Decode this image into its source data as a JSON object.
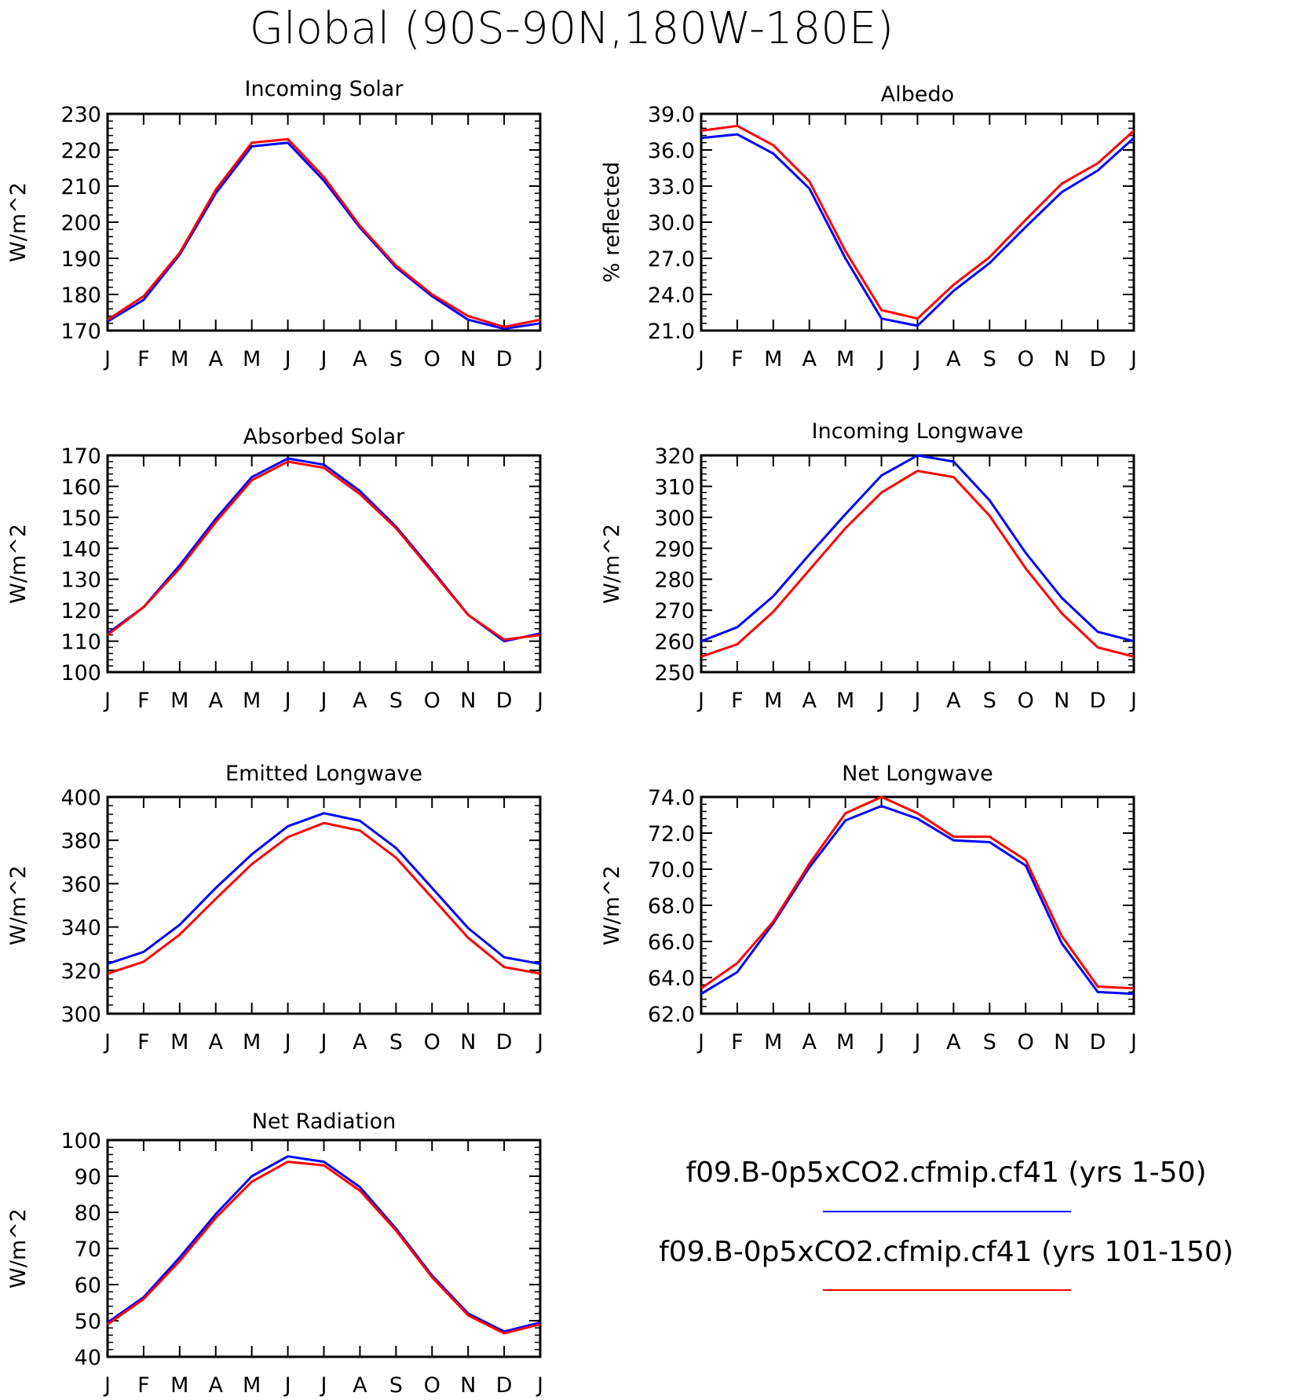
{
  "figure": {
    "title": "Global (90S-90N,180W-180E)"
  },
  "legend": [
    {
      "label": "f09.B-0p5xCO2.cfmip.cf41 (yrs 1-50)",
      "color": "#0000ff"
    },
    {
      "label": "f09.B-0p5xCO2.cfmip.cf41 (yrs 101-150)",
      "color": "#ff0000"
    }
  ],
  "colors": {
    "series_1": "#0000ff",
    "series_2": "#ff0000",
    "axes": "#000000",
    "background": "#ffffff"
  },
  "chart_data": [
    {
      "type": "line",
      "title": "Incoming Solar",
      "ylabel": "W/m^2",
      "categories": [
        "J",
        "F",
        "M",
        "A",
        "M",
        "J",
        "J",
        "A",
        "S",
        "O",
        "N",
        "D",
        "J"
      ],
      "ylim": [
        170,
        230
      ],
      "yticks": [
        "170",
        "180",
        "190",
        "200",
        "210",
        "220",
        "230"
      ],
      "series": [
        {
          "values": [
            172.5,
            178.5,
            191.0,
            208.0,
            221.0,
            222.0,
            211.5,
            198.5,
            187.5,
            179.5,
            173.0,
            170.5,
            172.0
          ]
        },
        {
          "values": [
            173.0,
            179.5,
            191.5,
            209.0,
            222.0,
            223.0,
            212.5,
            199.0,
            188.0,
            180.0,
            174.0,
            171.0,
            173.0
          ]
        }
      ]
    },
    {
      "type": "line",
      "title": "Albedo",
      "ylabel": "% reflected",
      "categories": [
        "J",
        "F",
        "M",
        "A",
        "M",
        "J",
        "J",
        "A",
        "S",
        "O",
        "N",
        "D",
        "J"
      ],
      "ylim": [
        21.0,
        39.0
      ],
      "yticks": [
        "21.0",
        "24.0",
        "27.0",
        "30.0",
        "33.0",
        "36.0",
        "39.0"
      ],
      "series": [
        {
          "values": [
            37.0,
            37.3,
            35.7,
            32.8,
            27.0,
            22.0,
            21.4,
            24.3,
            26.6,
            29.6,
            32.5,
            34.3,
            37.0
          ]
        },
        {
          "values": [
            37.6,
            38.0,
            36.4,
            33.4,
            27.6,
            22.7,
            22.0,
            24.8,
            27.1,
            30.2,
            33.2,
            34.9,
            37.6
          ]
        }
      ]
    },
    {
      "type": "line",
      "title": "Absorbed Solar",
      "ylabel": "W/m^2",
      "categories": [
        "J",
        "F",
        "M",
        "A",
        "M",
        "J",
        "J",
        "A",
        "S",
        "O",
        "N",
        "D",
        "J"
      ],
      "ylim": [
        100,
        170
      ],
      "yticks": [
        "100",
        "110",
        "120",
        "130",
        "140",
        "150",
        "160",
        "170"
      ],
      "series": [
        {
          "values": [
            112.5,
            121.0,
            134.5,
            149.5,
            163.0,
            169.0,
            167.0,
            158.5,
            147.0,
            133.0,
            118.5,
            110.0,
            112.5
          ]
        },
        {
          "values": [
            112.0,
            121.0,
            133.5,
            148.5,
            162.0,
            168.0,
            166.0,
            157.5,
            146.5,
            132.5,
            118.5,
            110.5,
            112.0
          ]
        }
      ]
    },
    {
      "type": "line",
      "title": "Incoming Longwave",
      "ylabel": "W/m^2",
      "categories": [
        "J",
        "F",
        "M",
        "A",
        "M",
        "J",
        "J",
        "A",
        "S",
        "O",
        "N",
        "D",
        "J"
      ],
      "ylim": [
        250,
        320
      ],
      "yticks": [
        "250",
        "260",
        "270",
        "280",
        "290",
        "300",
        "310",
        "320"
      ],
      "series": [
        {
          "values": [
            260.0,
            264.5,
            274.5,
            288.0,
            301.0,
            313.5,
            320.0,
            318.0,
            305.5,
            288.5,
            274.0,
            263.0,
            260.0
          ]
        },
        {
          "values": [
            255.0,
            259.0,
            269.5,
            283.0,
            296.5,
            308.0,
            315.0,
            313.0,
            300.5,
            283.5,
            269.0,
            258.0,
            255.0
          ]
        }
      ]
    },
    {
      "type": "line",
      "title": "Emitted Longwave",
      "ylabel": "W/m^2",
      "categories": [
        "J",
        "F",
        "M",
        "A",
        "M",
        "J",
        "J",
        "A",
        "S",
        "O",
        "N",
        "D",
        "J"
      ],
      "ylim": [
        300,
        400
      ],
      "yticks": [
        "300",
        "320",
        "340",
        "360",
        "380",
        "400"
      ],
      "series": [
        {
          "values": [
            323.0,
            328.5,
            341.0,
            358.0,
            373.5,
            386.5,
            392.5,
            389.0,
            376.5,
            358.0,
            339.5,
            326.0,
            323.0
          ]
        },
        {
          "values": [
            318.5,
            324.0,
            336.5,
            353.0,
            369.0,
            381.5,
            388.0,
            384.5,
            372.0,
            353.5,
            335.0,
            321.5,
            318.5
          ]
        }
      ]
    },
    {
      "type": "line",
      "title": "Net Longwave",
      "ylabel": "W/m^2",
      "categories": [
        "J",
        "F",
        "M",
        "A",
        "M",
        "J",
        "J",
        "A",
        "S",
        "O",
        "N",
        "D",
        "J"
      ],
      "ylim": [
        62.0,
        74.0
      ],
      "yticks": [
        "62.0",
        "64.0",
        "66.0",
        "68.0",
        "70.0",
        "72.0",
        "74.0"
      ],
      "series": [
        {
          "values": [
            63.1,
            64.3,
            67.0,
            70.1,
            72.7,
            73.5,
            72.8,
            71.6,
            71.5,
            70.2,
            65.9,
            63.2,
            63.1
          ]
        },
        {
          "values": [
            63.4,
            64.8,
            67.1,
            70.3,
            73.1,
            74.0,
            73.1,
            71.8,
            71.8,
            70.5,
            66.3,
            63.5,
            63.4
          ]
        }
      ]
    },
    {
      "type": "line",
      "title": "Net Radiation",
      "ylabel": "W/m^2",
      "categories": [
        "J",
        "F",
        "M",
        "A",
        "M",
        "J",
        "J",
        "A",
        "S",
        "O",
        "N",
        "D",
        "J"
      ],
      "ylim": [
        40,
        100
      ],
      "yticks": [
        "40",
        "50",
        "60",
        "70",
        "80",
        "90",
        "100"
      ],
      "series": [
        {
          "values": [
            49.5,
            56.5,
            67.5,
            79.5,
            90.0,
            95.5,
            94.0,
            87.0,
            75.5,
            62.5,
            52.0,
            47.0,
            49.5
          ]
        },
        {
          "values": [
            49.0,
            56.0,
            66.5,
            78.5,
            88.5,
            94.0,
            93.0,
            86.0,
            75.0,
            62.0,
            51.5,
            46.5,
            49.0
          ]
        }
      ]
    }
  ]
}
